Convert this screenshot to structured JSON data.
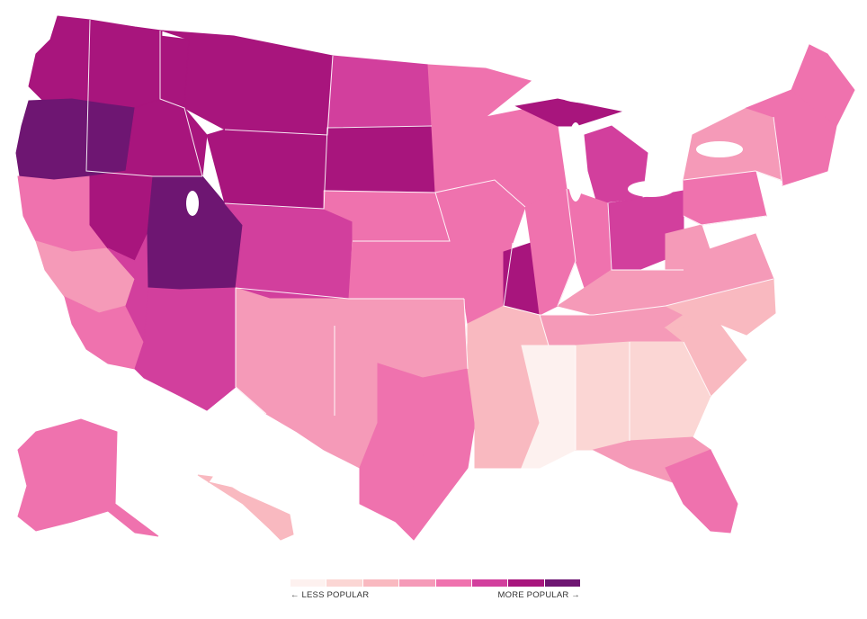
{
  "legend": {
    "less_label": "← LESS POPULAR",
    "more_label": "MORE POPULAR →",
    "colors": [
      "#fdf1ef",
      "#fbd6d4",
      "#f9b9c0",
      "#f59ab8",
      "#ef72ae",
      "#d23f9d",
      "#a8157d",
      "#6e1672"
    ]
  },
  "map": {
    "regions": [
      {
        "name": "pacific-northwest",
        "level": 6
      },
      {
        "name": "oregon-interior",
        "level": 7
      },
      {
        "name": "northern-california",
        "level": 4
      },
      {
        "name": "central-california",
        "level": 3
      },
      {
        "name": "southern-california",
        "level": 4
      },
      {
        "name": "nevada-north",
        "level": 6
      },
      {
        "name": "nevada-south",
        "level": 5
      },
      {
        "name": "idaho",
        "level": 6
      },
      {
        "name": "montana",
        "level": 6
      },
      {
        "name": "wyoming",
        "level": 6
      },
      {
        "name": "utah",
        "level": 7
      },
      {
        "name": "colorado",
        "level": 5
      },
      {
        "name": "arizona",
        "level": 5
      },
      {
        "name": "new-mexico",
        "level": 3
      },
      {
        "name": "north-dakota",
        "level": 5
      },
      {
        "name": "south-dakota",
        "level": 6
      },
      {
        "name": "nebraska",
        "level": 4
      },
      {
        "name": "kansas",
        "level": 4
      },
      {
        "name": "oklahoma",
        "level": 3
      },
      {
        "name": "texas-west",
        "level": 3
      },
      {
        "name": "texas-central",
        "level": 4
      },
      {
        "name": "texas-east",
        "level": 4
      },
      {
        "name": "minnesota",
        "level": 4
      },
      {
        "name": "iowa",
        "level": 4
      },
      {
        "name": "missouri",
        "level": 4
      },
      {
        "name": "missouri-east",
        "level": 6
      },
      {
        "name": "wisconsin",
        "level": 4
      },
      {
        "name": "michigan-upper",
        "level": 6
      },
      {
        "name": "michigan-lower",
        "level": 5
      },
      {
        "name": "illinois",
        "level": 4
      },
      {
        "name": "indiana",
        "level": 4
      },
      {
        "name": "ohio",
        "level": 5
      },
      {
        "name": "kentucky",
        "level": 3
      },
      {
        "name": "tennessee",
        "level": 3
      },
      {
        "name": "arkansas-louisiana",
        "level": 2
      },
      {
        "name": "mississippi",
        "level": 0
      },
      {
        "name": "alabama",
        "level": 1
      },
      {
        "name": "georgia",
        "level": 1
      },
      {
        "name": "south-carolina",
        "level": 2
      },
      {
        "name": "north-carolina",
        "level": 2
      },
      {
        "name": "virginia",
        "level": 3
      },
      {
        "name": "west-virginia",
        "level": 3
      },
      {
        "name": "pennsylvania",
        "level": 4
      },
      {
        "name": "new-york",
        "level": 3
      },
      {
        "name": "new-england",
        "level": 4
      },
      {
        "name": "maine",
        "level": 4
      },
      {
        "name": "florida-north",
        "level": 3
      },
      {
        "name": "florida-south",
        "level": 4
      },
      {
        "name": "alaska",
        "level": 4
      },
      {
        "name": "hawaii",
        "level": 2
      }
    ]
  }
}
